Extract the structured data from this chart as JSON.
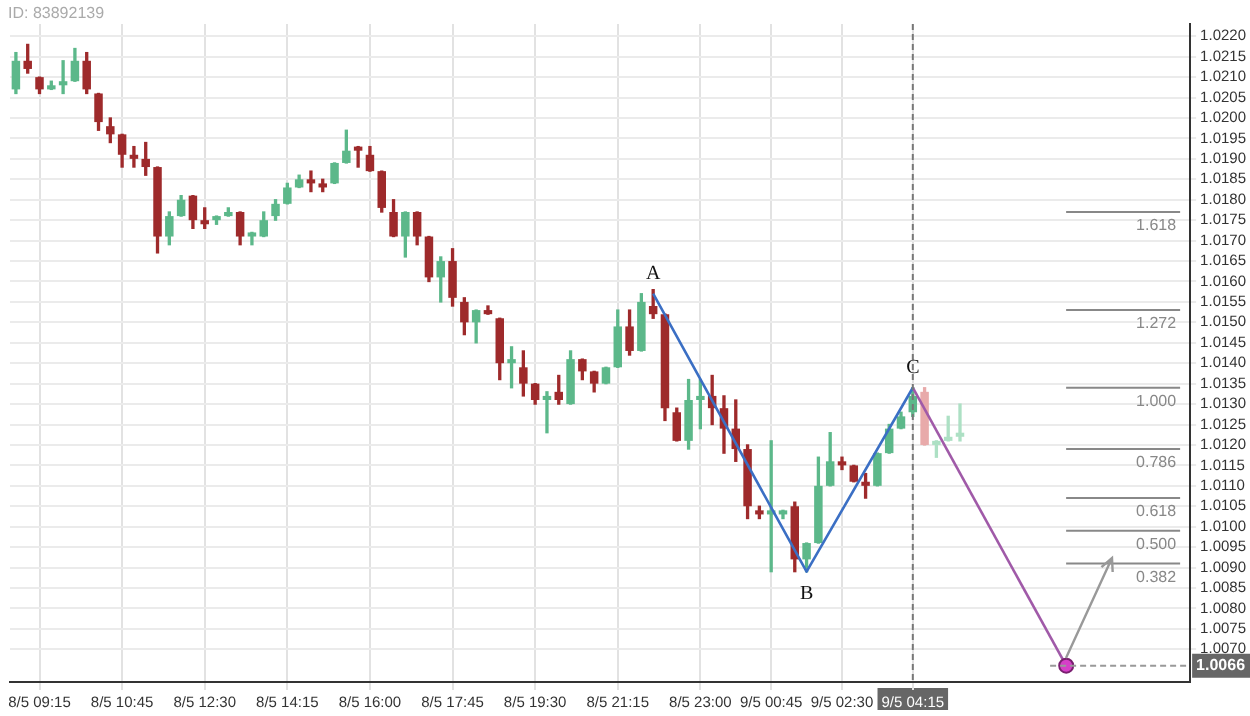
{
  "chart_data": {
    "type": "candlestick",
    "categories": [
      null,
      null,
      "8/5 09:15",
      null,
      null,
      null,
      null,
      null,
      null,
      "8/5 10:45",
      null,
      null,
      null,
      null,
      null,
      null,
      "8/5 12:30",
      null,
      null,
      null,
      null,
      null,
      null,
      "8/5 14:15",
      null,
      null,
      null,
      null,
      null,
      null,
      "8/5 16:00",
      null,
      null,
      null,
      null,
      null,
      null,
      "8/5 17:45",
      null,
      null,
      null,
      null,
      null,
      null,
      "8/5 19:30",
      null,
      null,
      null,
      null,
      null,
      null,
      "8/5 21:15",
      null,
      null,
      null,
      null,
      null,
      null,
      "8/5 23:00",
      null,
      null,
      null,
      null,
      null,
      "9/5 00:45",
      null,
      null,
      null,
      null,
      null,
      "9/5 02:30",
      null,
      null,
      null,
      null,
      null,
      "9/5 04:15",
      null,
      null,
      null,
      null,
      null,
      null,
      null,
      null,
      null,
      null,
      null,
      null,
      null,
      null,
      null,
      null,
      null,
      null,
      null,
      null,
      null,
      null,
      null
    ],
    "ohlc": [
      [
        1.0207,
        1.0216,
        1.0206,
        1.0214
      ],
      [
        1.0214,
        1.0218,
        1.0211,
        1.0212
      ],
      [
        1.021,
        1.021,
        1.0206,
        1.0207
      ],
      [
        1.0207,
        1.0209,
        1.0207,
        1.0208
      ],
      [
        1.0208,
        1.0214,
        1.0206,
        1.0209
      ],
      [
        1.0209,
        1.0217,
        1.0209,
        1.0214
      ],
      [
        1.0214,
        1.0216,
        1.0206,
        1.0207
      ],
      [
        1.0206,
        1.0206,
        1.0197,
        1.0199
      ],
      [
        1.0198,
        1.02,
        1.0194,
        1.0196
      ],
      [
        1.0196,
        1.0196,
        1.0188,
        1.0191
      ],
      [
        1.0191,
        1.0193,
        1.0188,
        1.019
      ],
      [
        1.019,
        1.0194,
        1.0186,
        1.0188
      ],
      [
        1.0188,
        1.0188,
        1.0167,
        1.0171
      ],
      [
        1.0171,
        1.0177,
        1.0169,
        1.0176
      ],
      [
        1.0176,
        1.0181,
        1.0176,
        1.018
      ],
      [
        1.0181,
        1.0181,
        1.0173,
        1.0175
      ],
      [
        1.0175,
        1.0178,
        1.0173,
        1.0174
      ],
      [
        1.0175,
        1.0176,
        1.0174,
        1.0176
      ],
      [
        1.0176,
        1.0178,
        1.0176,
        1.0177
      ],
      [
        1.0177,
        1.0177,
        1.0169,
        1.0171
      ],
      [
        1.0171,
        1.0172,
        1.0169,
        1.0172
      ],
      [
        1.0171,
        1.0177,
        1.0171,
        1.0175
      ],
      [
        1.0176,
        1.018,
        1.0175,
        1.0179
      ],
      [
        1.0179,
        1.0184,
        1.0179,
        1.0183
      ],
      [
        1.0183,
        1.0186,
        1.0183,
        1.0185
      ],
      [
        1.0185,
        1.0187,
        1.0182,
        1.0184
      ],
      [
        1.0184,
        1.0185,
        1.0182,
        1.0183
      ],
      [
        1.0184,
        1.0189,
        1.0184,
        1.0189
      ],
      [
        1.0189,
        1.0197,
        1.0189,
        1.0192
      ],
      [
        1.0193,
        1.0193,
        1.0188,
        1.0192
      ],
      [
        1.0191,
        1.0193,
        1.0187,
        1.0187
      ],
      [
        1.0187,
        1.0187,
        1.0177,
        1.0178
      ],
      [
        1.0177,
        1.018,
        1.0171,
        1.0171
      ],
      [
        1.0171,
        1.0177,
        1.0166,
        1.0177
      ],
      [
        1.0177,
        1.0177,
        1.0169,
        1.0171
      ],
      [
        1.0171,
        1.0171,
        1.016,
        1.0161
      ],
      [
        1.0161,
        1.0166,
        1.0155,
        1.0165
      ],
      [
        1.0165,
        1.0168,
        1.0154,
        1.0156
      ],
      [
        1.0155,
        1.0156,
        1.0147,
        1.015
      ],
      [
        1.015,
        1.0153,
        1.0145,
        1.0153
      ],
      [
        1.0153,
        1.0154,
        1.0152,
        1.0152
      ],
      [
        1.0151,
        1.0151,
        1.0136,
        1.014
      ],
      [
        1.014,
        1.0144,
        1.0134,
        1.0141
      ],
      [
        1.0139,
        1.0143,
        1.0132,
        1.0135
      ],
      [
        1.0135,
        1.0135,
        1.013,
        1.0131
      ],
      [
        1.0131,
        1.0133,
        1.0123,
        1.0132
      ],
      [
        1.0133,
        1.0137,
        1.013,
        1.0131
      ],
      [
        1.013,
        1.0143,
        1.013,
        1.0141
      ],
      [
        1.0141,
        1.0141,
        1.0136,
        1.0138
      ],
      [
        1.0138,
        1.0138,
        1.0133,
        1.0135
      ],
      [
        1.0135,
        1.0139,
        1.0135,
        1.0139
      ],
      [
        1.0139,
        1.0153,
        1.0139,
        1.0149
      ],
      [
        1.0149,
        1.0153,
        1.0142,
        1.0143
      ],
      [
        1.0143,
        1.0157,
        1.0143,
        1.0155
      ],
      [
        1.0154,
        1.0158,
        1.0151,
        1.0152
      ],
      [
        1.0152,
        1.0152,
        1.0126,
        1.0129
      ],
      [
        1.0128,
        1.0129,
        1.0121,
        1.0121
      ],
      [
        1.0121,
        1.0136,
        1.0119,
        1.0131
      ],
      [
        1.0131,
        1.0136,
        1.0124,
        1.0132
      ],
      [
        1.0132,
        1.0137,
        1.0125,
        1.0129
      ],
      [
        1.0129,
        1.0132,
        1.0118,
        1.0124
      ],
      [
        1.0124,
        1.0131,
        1.0116,
        1.0119
      ],
      [
        1.0119,
        1.012,
        1.0102,
        1.0105
      ],
      [
        1.0104,
        1.0105,
        1.0102,
        1.0103
      ],
      [
        1.0103,
        1.0121,
        1.0089,
        1.0104
      ],
      [
        1.0103,
        1.0104,
        1.0102,
        1.0104
      ],
      [
        1.0105,
        1.0106,
        1.0089,
        1.0092
      ],
      [
        1.0092,
        1.0096,
        1.0089,
        1.0096
      ],
      [
        1.0096,
        1.0117,
        1.0096,
        1.011
      ],
      [
        1.011,
        1.0123,
        1.011,
        1.0116
      ],
      [
        1.0116,
        1.0117,
        1.0114,
        1.0115
      ],
      [
        1.0115,
        1.0115,
        1.0111,
        1.0111
      ],
      [
        1.0111,
        1.0113,
        1.0107,
        1.011
      ],
      [
        1.011,
        1.0118,
        1.011,
        1.0118
      ],
      [
        1.0118,
        1.0125,
        1.0118,
        1.0124
      ],
      [
        1.0124,
        1.0128,
        1.0124,
        1.0127
      ],
      [
        1.0128,
        1.0134,
        1.0127,
        1.0132
      ],
      [
        1.0133,
        1.0134,
        1.012,
        1.012
      ],
      [
        1.012,
        1.0121,
        1.0117,
        1.0121
      ],
      [
        1.0121,
        1.0127,
        1.0121,
        1.0122
      ],
      [
        1.0122,
        1.013,
        1.0121,
        1.0123
      ],
      null,
      null,
      null,
      null,
      null,
      null,
      null,
      null,
      null,
      null,
      null,
      null,
      null,
      null,
      null,
      null,
      null,
      null,
      null
    ],
    "colors": [
      "#5cb88a",
      "#9e2a2b",
      "#9e2a2b",
      "#5cb88a",
      "#5cb88a",
      "#5cb88a",
      "#9e2a2b",
      "#9e2a2b",
      "#9e2a2b",
      "#9e2a2b",
      "#9e2a2b",
      "#9e2a2b",
      "#9e2a2b",
      "#5cb88a",
      "#5cb88a",
      "#9e2a2b",
      "#9e2a2b",
      "#5cb88a",
      "#5cb88a",
      "#9e2a2b",
      "#5cb88a",
      "#5cb88a",
      "#5cb88a",
      "#5cb88a",
      "#5cb88a",
      "#9e2a2b",
      "#9e2a2b",
      "#5cb88a",
      "#5cb88a",
      "#9e2a2b",
      "#9e2a2b",
      "#9e2a2b",
      "#9e2a2b",
      "#5cb88a",
      "#9e2a2b",
      "#9e2a2b",
      "#5cb88a",
      "#9e2a2b",
      "#9e2a2b",
      "#5cb88a",
      "#9e2a2b",
      "#9e2a2b",
      "#5cb88a",
      "#9e2a2b",
      "#9e2a2b",
      "#5cb88a",
      "#9e2a2b",
      "#5cb88a",
      "#9e2a2b",
      "#9e2a2b",
      "#5cb88a",
      "#5cb88a",
      "#9e2a2b",
      "#5cb88a",
      "#9e2a2b",
      "#9e2a2b",
      "#9e2a2b",
      "#5cb88a",
      "#5cb88a",
      "#9e2a2b",
      "#9e2a2b",
      "#9e2a2b",
      "#9e2a2b",
      "#9e2a2b",
      "#5cb88a",
      "#5cb88a",
      "#9e2a2b",
      "#5cb88a",
      "#5cb88a",
      "#5cb88a",
      "#9e2a2b",
      "#9e2a2b",
      "#9e2a2b",
      "#5cb88a",
      "#5cb88a",
      "#5cb88a",
      "#5cb88a",
      "#e8aaaa",
      "#ade0c4",
      "#ade0c4",
      "#ade0c4",
      null,
      null,
      null,
      null,
      null,
      null,
      null,
      null,
      null,
      null,
      null,
      null,
      null,
      null,
      null,
      null,
      null,
      null,
      null
    ],
    "series": [
      {
        "type": "line",
        "color": "#3b6fc4",
        "values": [
          null,
          null,
          null,
          null,
          null,
          null,
          null,
          null,
          null,
          null,
          null,
          null,
          null,
          null,
          null,
          null,
          null,
          null,
          null,
          null,
          null,
          null,
          null,
          null,
          null,
          null,
          null,
          null,
          null,
          null,
          null,
          null,
          null,
          null,
          null,
          null,
          null,
          null,
          null,
          null,
          null,
          null,
          null,
          null,
          null,
          null,
          null,
          null,
          null,
          null,
          null,
          null,
          null,
          null,
          1.0157,
          null,
          null,
          null,
          null,
          null,
          null,
          null,
          null,
          null,
          null,
          null,
          null,
          1.0089,
          null,
          null,
          null,
          null,
          null,
          null,
          null,
          null,
          1.0134,
          null,
          null,
          null,
          null,
          null,
          null,
          null,
          null,
          null,
          null,
          null,
          null,
          null,
          null,
          null,
          null,
          null,
          null,
          null,
          null,
          null,
          null,
          null
        ]
      },
      {
        "type": "line",
        "color": "#a05aa8",
        "values": [
          null,
          null,
          null,
          null,
          null,
          null,
          null,
          null,
          null,
          null,
          null,
          null,
          null,
          null,
          null,
          null,
          null,
          null,
          null,
          null,
          null,
          null,
          null,
          null,
          null,
          null,
          null,
          null,
          null,
          null,
          null,
          null,
          null,
          null,
          null,
          null,
          null,
          null,
          null,
          null,
          null,
          null,
          null,
          null,
          null,
          null,
          null,
          null,
          null,
          null,
          null,
          null,
          null,
          null,
          null,
          null,
          null,
          null,
          null,
          null,
          null,
          null,
          null,
          null,
          null,
          null,
          null,
          null,
          null,
          null,
          null,
          null,
          null,
          null,
          null,
          null,
          1.0134,
          null,
          null,
          null,
          null,
          null,
          null,
          null,
          null,
          null,
          null,
          null,
          null,
          1.0066,
          null,
          null,
          null,
          null,
          null,
          null,
          null,
          null,
          null,
          null
        ]
      },
      {
        "type": "scatter",
        "color": "#d63fc8",
        "marker": "circle",
        "values": [
          null,
          null,
          null,
          null,
          null,
          null,
          null,
          null,
          null,
          null,
          null,
          null,
          null,
          null,
          null,
          null,
          null,
          null,
          null,
          null,
          null,
          null,
          null,
          null,
          null,
          null,
          null,
          null,
          null,
          null,
          null,
          null,
          null,
          null,
          null,
          null,
          null,
          null,
          null,
          null,
          null,
          null,
          null,
          null,
          null,
          null,
          null,
          null,
          null,
          null,
          null,
          null,
          null,
          null,
          null,
          null,
          null,
          null,
          null,
          null,
          null,
          null,
          null,
          null,
          null,
          null,
          null,
          null,
          null,
          null,
          null,
          null,
          null,
          null,
          null,
          null,
          null,
          null,
          null,
          null,
          null,
          null,
          null,
          null,
          null,
          null,
          null,
          null,
          null,
          1.0066,
          null,
          null,
          null,
          null,
          null,
          null,
          null,
          null,
          null,
          null
        ]
      }
    ],
    "ylim": [
      1.0062,
      1.0223
    ],
    "yticks": [
      {
        "value": 1.007,
        "label": "1.0070"
      },
      1.0075,
      {
        "value": 1.008,
        "label": "1.0080"
      },
      1.0085,
      {
        "value": 1.009,
        "label": "1.0090"
      },
      1.0095,
      {
        "value": 1.01,
        "label": "1.0100"
      },
      1.0105,
      {
        "value": 1.011,
        "label": "1.0110"
      },
      1.0115,
      {
        "value": 1.012,
        "label": "1.0120"
      },
      1.0125,
      {
        "value": 1.013,
        "label": "1.0130"
      },
      1.0135,
      {
        "value": 1.014,
        "label": "1.0140"
      },
      1.0145,
      {
        "value": 1.015,
        "label": "1.0150"
      },
      1.0155,
      {
        "value": 1.016,
        "label": "1.0160"
      },
      1.0165,
      {
        "value": 1.017,
        "label": "1.0170"
      },
      1.0175,
      {
        "value": 1.018,
        "label": "1.0180"
      },
      1.0185,
      {
        "value": 1.019,
        "label": "1.0190"
      },
      1.0195,
      {
        "value": 1.02,
        "label": "1.0200"
      },
      1.0205,
      {
        "value": 1.021,
        "label": "1.0210"
      },
      1.0215,
      {
        "value": 1.022,
        "label": "1.0220"
      }
    ],
    "grid": true,
    "ref_lines": [
      {
        "axis": "x",
        "value": "9/5 04:15",
        "line_style": "dashed",
        "color": "#777777"
      },
      {
        "axis": "y",
        "value": 1.0066,
        "label": "1.0066",
        "line_style": "dashed",
        "color": "#999999"
      },
      {
        "axis": "y",
        "value": 1.0177,
        "color": "#888888"
      },
      {
        "axis": "y",
        "value": 1.0153,
        "color": "#888888"
      },
      {
        "axis": "y",
        "value": 1.0134,
        "color": "#888888"
      },
      {
        "axis": "y",
        "value": 1.0119,
        "color": "#888888"
      },
      {
        "axis": "y",
        "value": 1.0107,
        "color": "#888888"
      },
      {
        "axis": "y",
        "value": 1.0099,
        "color": "#888888"
      },
      {
        "axis": "y",
        "value": 1.0091,
        "color": "#888888"
      }
    ],
    "annotations": [
      "ID: 83892139",
      {
        "text": "A",
        "y": 1.0157
      },
      {
        "text": "B",
        "y": 1.0089
      },
      {
        "text": "C",
        "y": 1.0134
      },
      {
        "text": "1.618",
        "y": 1.0177
      },
      {
        "text": "1.272",
        "y": 1.0153
      },
      {
        "text": "1.000",
        "y": 1.0134
      },
      {
        "text": "0.786",
        "y": 1.0119
      },
      {
        "text": "0.618",
        "y": 1.0107
      },
      {
        "text": "0.500",
        "y": 1.0099
      },
      {
        "text": "0.382",
        "y": 1.0091
      }
    ]
  }
}
